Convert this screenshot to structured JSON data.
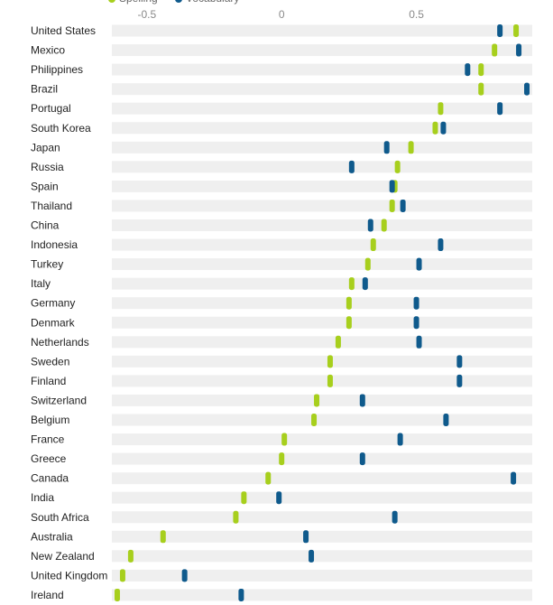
{
  "chart_data": {
    "type": "scatter",
    "legend": {
      "position": "top-left",
      "items": [
        {
          "name": "Spelling",
          "color": "#a7cf1d"
        },
        {
          "name": "Vocabulary",
          "color": "#0f5a8c"
        }
      ]
    },
    "x_axis": {
      "range": [
        -0.63,
        0.93
      ],
      "ticks": [
        {
          "value": -0.5,
          "label": "-0.5"
        },
        {
          "value": 0,
          "label": "0"
        },
        {
          "value": 0.5,
          "label": "0.5"
        }
      ],
      "position": "top",
      "grid": false
    },
    "categories": [
      "United States",
      "Mexico",
      "Philippines",
      "Brazil",
      "Portugal",
      "South Korea",
      "Japan",
      "Russia",
      "Spain",
      "Thailand",
      "China",
      "Indonesia",
      "Turkey",
      "Italy",
      "Germany",
      "Denmark",
      "Netherlands",
      "Sweden",
      "Finland",
      "Switzerland",
      "Belgium",
      "France",
      "Greece",
      "Canada",
      "India",
      "South Africa",
      "Australia",
      "New Zealand",
      "United Kingdom",
      "Ireland"
    ],
    "series": [
      {
        "name": "Spelling",
        "color": "#a7cf1d",
        "values": [
          0.87,
          0.79,
          0.74,
          0.74,
          0.59,
          0.57,
          0.48,
          0.43,
          0.42,
          0.41,
          0.38,
          0.34,
          0.32,
          0.26,
          0.25,
          0.25,
          0.21,
          0.18,
          0.18,
          0.13,
          0.12,
          0.01,
          0.0,
          -0.05,
          -0.14,
          -0.17,
          -0.44,
          -0.56,
          -0.59,
          -0.61
        ]
      },
      {
        "name": "Vocabulary",
        "color": "#0f5a8c",
        "values": [
          0.81,
          0.88,
          0.69,
          0.91,
          0.81,
          0.6,
          0.39,
          0.26,
          0.41,
          0.45,
          0.33,
          0.59,
          0.51,
          0.31,
          0.5,
          0.5,
          0.51,
          0.66,
          0.66,
          0.3,
          0.61,
          0.44,
          0.3,
          0.86,
          -0.01,
          0.42,
          0.09,
          0.11,
          -0.36,
          -0.15
        ]
      }
    ]
  }
}
